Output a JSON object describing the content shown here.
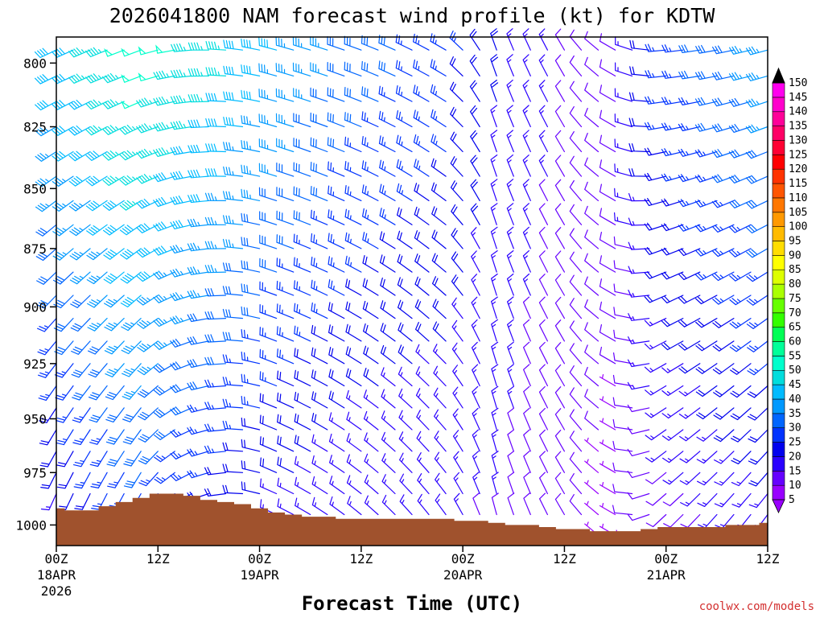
{
  "chart_data": {
    "type": "wind_barb_time_height",
    "title": "2026041800 NAM forecast wind profile (kt) for KDTW",
    "xlabel": "Forecast Time (UTC)",
    "ylabel": "",
    "x_range_hours": [
      0,
      84
    ],
    "y_range_hpa": [
      1010,
      790
    ],
    "y_ticks": [
      800,
      825,
      850,
      875,
      900,
      925,
      950,
      975,
      1000
    ],
    "x_ticks": [
      {
        "hour": 0,
        "label": "00Z",
        "date": "18APR",
        "year": "2026"
      },
      {
        "hour": 12,
        "label": "12Z",
        "date": "",
        "year": ""
      },
      {
        "hour": 24,
        "label": "00Z",
        "date": "19APR",
        "year": ""
      },
      {
        "hour": 36,
        "label": "12Z",
        "date": "",
        "year": ""
      },
      {
        "hour": 48,
        "label": "00Z",
        "date": "20APR",
        "year": ""
      },
      {
        "hour": 60,
        "label": "12Z",
        "date": "",
        "year": ""
      },
      {
        "hour": 72,
        "label": "00Z",
        "date": "21APR",
        "year": ""
      },
      {
        "hour": 84,
        "label": "12Z",
        "date": "",
        "year": ""
      }
    ],
    "surface_pressure": [
      {
        "h": 0,
        "p": 992
      },
      {
        "h": 2,
        "p": 993
      },
      {
        "h": 4,
        "p": 993
      },
      {
        "h": 6,
        "p": 991
      },
      {
        "h": 8,
        "p": 989
      },
      {
        "h": 10,
        "p": 987
      },
      {
        "h": 12,
        "p": 985
      },
      {
        "h": 14,
        "p": 985
      },
      {
        "h": 16,
        "p": 986
      },
      {
        "h": 18,
        "p": 988
      },
      {
        "h": 20,
        "p": 989
      },
      {
        "h": 22,
        "p": 990
      },
      {
        "h": 24,
        "p": 992
      },
      {
        "h": 26,
        "p": 994
      },
      {
        "h": 28,
        "p": 995
      },
      {
        "h": 30,
        "p": 996
      },
      {
        "h": 32,
        "p": 996
      },
      {
        "h": 34,
        "p": 997
      },
      {
        "h": 36,
        "p": 997
      },
      {
        "h": 38,
        "p": 997
      },
      {
        "h": 40,
        "p": 997
      },
      {
        "h": 42,
        "p": 997
      },
      {
        "h": 44,
        "p": 997
      },
      {
        "h": 46,
        "p": 997
      },
      {
        "h": 48,
        "p": 998
      },
      {
        "h": 50,
        "p": 998
      },
      {
        "h": 52,
        "p": 999
      },
      {
        "h": 54,
        "p": 1000
      },
      {
        "h": 56,
        "p": 1000
      },
      {
        "h": 58,
        "p": 1001
      },
      {
        "h": 60,
        "p": 1002
      },
      {
        "h": 62,
        "p": 1002
      },
      {
        "h": 64,
        "p": 1003
      },
      {
        "h": 66,
        "p": 1003
      },
      {
        "h": 68,
        "p": 1003
      },
      {
        "h": 70,
        "p": 1002
      },
      {
        "h": 72,
        "p": 1001
      },
      {
        "h": 74,
        "p": 1001
      },
      {
        "h": 76,
        "p": 1001
      },
      {
        "h": 78,
        "p": 1001
      },
      {
        "h": 80,
        "p": 1000
      },
      {
        "h": 82,
        "p": 1000
      },
      {
        "h": 84,
        "p": 999
      }
    ],
    "surface_color": "#a0522d",
    "barb_levels_hpa": [
      795,
      805,
      815,
      825,
      835,
      845,
      855,
      865,
      875,
      885,
      895,
      905,
      915,
      925,
      935,
      945,
      955,
      965,
      975,
      985,
      995,
      1005
    ],
    "barb_hour_step": 2,
    "wind_field_keyframes": [
      {
        "h": 0,
        "low": {
          "dir": 200,
          "spd": 15
        },
        "high": {
          "dir": 245,
          "spd": 40
        }
      },
      {
        "h": 10,
        "low": {
          "dir": 205,
          "spd": 25
        },
        "high": {
          "dir": 250,
          "spd": 50
        }
      },
      {
        "h": 18,
        "low": {
          "dir": 250,
          "spd": 20
        },
        "high": {
          "dir": 270,
          "spd": 45
        }
      },
      {
        "h": 26,
        "low": {
          "dir": 295,
          "spd": 15
        },
        "high": {
          "dir": 285,
          "spd": 38
        }
      },
      {
        "h": 36,
        "low": {
          "dir": 310,
          "spd": 12
        },
        "high": {
          "dir": 290,
          "spd": 30
        }
      },
      {
        "h": 46,
        "low": {
          "dir": 325,
          "spd": 12
        },
        "high": {
          "dir": 300,
          "spd": 25
        }
      },
      {
        "h": 52,
        "low": {
          "dir": 345,
          "spd": 12
        },
        "high": {
          "dir": 340,
          "spd": 18
        }
      },
      {
        "h": 60,
        "low": {
          "dir": 330,
          "spd": 8
        },
        "high": {
          "dir": 330,
          "spd": 12
        }
      },
      {
        "h": 66,
        "low": {
          "dir": 300,
          "spd": 6
        },
        "high": {
          "dir": 300,
          "spd": 10
        }
      },
      {
        "h": 72,
        "low": {
          "dir": 225,
          "spd": 10
        },
        "high": {
          "dir": 265,
          "spd": 25
        }
      },
      {
        "h": 84,
        "low": {
          "dir": 215,
          "spd": 15
        },
        "high": {
          "dir": 255,
          "spd": 35
        }
      }
    ],
    "colorbar": {
      "levels": [
        5,
        10,
        15,
        20,
        25,
        30,
        35,
        40,
        45,
        50,
        55,
        60,
        65,
        70,
        75,
        80,
        85,
        90,
        95,
        100,
        105,
        110,
        115,
        120,
        125,
        130,
        135,
        140,
        145,
        150
      ],
      "colors": [
        "#9900ff",
        "#6600ff",
        "#2a00ff",
        "#0000ee",
        "#0033ff",
        "#0066ff",
        "#0099ff",
        "#00bbff",
        "#00dddd",
        "#00ffcc",
        "#00ff99",
        "#00ff55",
        "#33ff00",
        "#66ff00",
        "#aaff00",
        "#ddff00",
        "#ffff00",
        "#ffdd00",
        "#ffbb00",
        "#ff9900",
        "#ff7700",
        "#ff5500",
        "#ff3300",
        "#ff0000",
        "#ff0033",
        "#ff0066",
        "#ff0099",
        "#ff00cc",
        "#ff00ee",
        "#ff00ff"
      ]
    }
  },
  "credit": "coolwx.com/models"
}
